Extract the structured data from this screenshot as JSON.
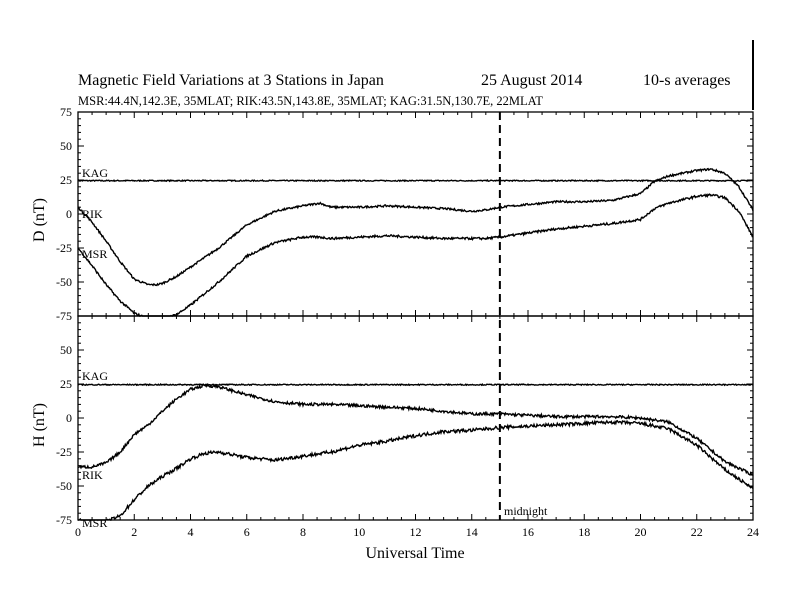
{
  "title": {
    "main": "Magnetic Field Variations at 3 Stations in Japan",
    "date": "25  August  2014",
    "avg": "10-s averages"
  },
  "subtitle": "MSR:44.4N,142.3E, 35MLAT;  RIK:43.5N,143.8E, 35MLAT;  KAG:31.5N,130.7E, 22MLAT",
  "chart_data": [
    {
      "type": "line",
      "panel": "top",
      "ylabel": "D (nT)",
      "xlabel": "Universal Time",
      "xlim": [
        0,
        24
      ],
      "ylim": [
        -75,
        75
      ],
      "yticks": [
        75,
        50,
        25,
        0,
        -25,
        -50,
        -75
      ],
      "grid": false,
      "series": [
        {
          "name": "KAG",
          "x": [
            0,
            24
          ],
          "y": [
            24.5,
            24.5
          ],
          "noise": 0.4
        },
        {
          "name": "RIK",
          "x": [
            0,
            0.5,
            1,
            1.5,
            2,
            2.5,
            2.8,
            3,
            3.5,
            4,
            5,
            6,
            7,
            8,
            8.6,
            9,
            10,
            11,
            12,
            13,
            14,
            14.5,
            15,
            16,
            17,
            18,
            19,
            20,
            20.5,
            21,
            22,
            22.5,
            23,
            23.5,
            24
          ],
          "y": [
            5,
            -6,
            -20,
            -35,
            -48,
            -52,
            -52,
            -51,
            -46,
            -39,
            -25,
            -8,
            2,
            6,
            8,
            5,
            5,
            6,
            5,
            4,
            2,
            3,
            5,
            7,
            9,
            9,
            10,
            15,
            24,
            28,
            32,
            33,
            30,
            20,
            3
          ],
          "noise": 0.7
        },
        {
          "name": "MSR",
          "x": [
            0,
            0.5,
            1,
            1.5,
            2,
            2.5,
            2.8,
            3,
            3.5,
            4,
            5,
            6,
            7,
            8,
            8.6,
            9,
            10,
            11,
            12,
            13,
            14,
            14.5,
            15,
            16,
            17,
            18,
            19,
            20,
            20.5,
            21,
            22,
            22.5,
            23,
            23.5,
            24
          ],
          "y": [
            -25,
            -38,
            -52,
            -64,
            -73,
            -77,
            -78,
            -77,
            -74,
            -67,
            -50,
            -31,
            -21,
            -17,
            -17,
            -18,
            -17,
            -16,
            -17,
            -18,
            -18,
            -18,
            -17,
            -14,
            -11,
            -9,
            -7,
            -4,
            4,
            8,
            13,
            14,
            12,
            2,
            -17
          ],
          "noise": 0.8
        }
      ]
    },
    {
      "type": "line",
      "panel": "bottom",
      "ylabel": "H (nT)",
      "xlabel": "Universal Time",
      "xlim": [
        0,
        24
      ],
      "ylim": [
        -75,
        75
      ],
      "yticks": [
        75,
        50,
        25,
        0,
        -25,
        -50,
        -75
      ],
      "xticks": [
        0,
        2,
        4,
        6,
        8,
        10,
        12,
        14,
        16,
        18,
        20,
        22,
        24
      ],
      "grid": false,
      "series": [
        {
          "name": "KAG",
          "x": [
            0,
            24
          ],
          "y": [
            24.5,
            24.5
          ],
          "noise": 0.4
        },
        {
          "name": "RIK",
          "x": [
            0,
            0.5,
            1,
            1.5,
            2,
            2.5,
            3,
            3.5,
            4,
            4.5,
            5,
            6,
            7,
            8,
            9,
            10,
            11,
            12,
            13,
            14,
            15,
            16,
            17,
            18,
            19,
            20,
            21,
            22,
            23,
            24
          ],
          "y": [
            -36,
            -36,
            -33,
            -25,
            -12,
            -5,
            5,
            14,
            21,
            24,
            23,
            17,
            12,
            10,
            10,
            9,
            8,
            7,
            5,
            3,
            3,
            2,
            1,
            1,
            1,
            0,
            -3,
            -15,
            -32,
            -42
          ],
          "noise": 1.0
        },
        {
          "name": "MSR",
          "x": [
            0,
            0.5,
            1,
            1.5,
            2,
            2.5,
            3,
            3.5,
            4,
            4.5,
            5,
            6,
            7,
            8,
            9,
            10,
            11,
            12,
            13,
            14,
            15,
            16,
            17,
            18,
            19,
            20,
            21,
            22,
            23,
            24
          ],
          "y": [
            -75,
            -77,
            -76,
            -72,
            -60,
            -50,
            -43,
            -37,
            -30,
            -26,
            -25,
            -29,
            -31,
            -28,
            -25,
            -20,
            -17,
            -13,
            -10,
            -9,
            -7,
            -6,
            -5,
            -4,
            -3,
            -4,
            -8,
            -20,
            -38,
            -52
          ],
          "noise": 1.2
        }
      ]
    }
  ],
  "labels": {
    "d_kag": "KAG",
    "d_rik": "RIK",
    "d_msr": "MSR",
    "h_kag": "KAG",
    "h_rik": "RIK",
    "h_msr": "MSR",
    "midnight": "midnight"
  },
  "annotations": {
    "midnight_line_x": 15
  }
}
